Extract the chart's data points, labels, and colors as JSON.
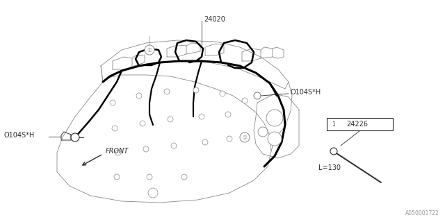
{
  "bg_color": "#ffffff",
  "lc": "#2a2a2a",
  "lc_light": "#888888",
  "part_label_24020": "24020",
  "part_label_24226": "24226",
  "label_0104SH_left": "O104S*H",
  "label_0104SH_right": "O104S*H",
  "label_front": "FRONT",
  "label_L130": "L=130",
  "watermark": "A050001722",
  "fs_main": 7,
  "fs_small": 6,
  "lw_body": 0.6,
  "lw_wire": 2.2,
  "lw_wire2": 1.4
}
